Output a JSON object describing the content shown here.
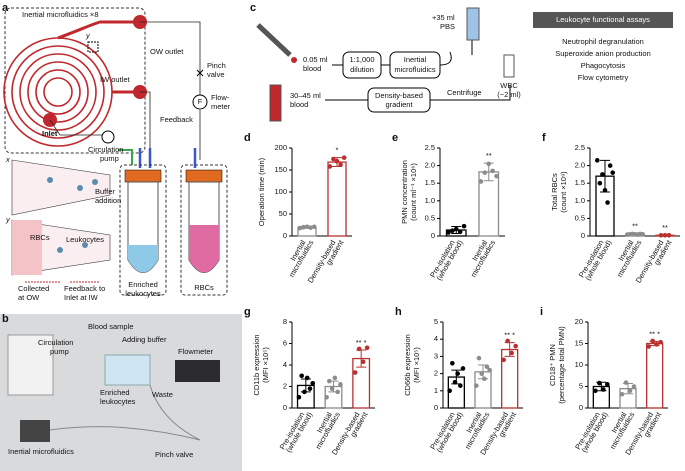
{
  "diagram_a": {
    "panel": "a",
    "chip": "Inertial microfluidics ×8",
    "y_mark": "y",
    "ow_outlet": "OW outlet",
    "iw_outlet": "IW outlet",
    "inlet": "Inlet",
    "pump": [
      "Circulation",
      "pump"
    ],
    "pinch": [
      "Pinch",
      "valve"
    ],
    "flow_symbol": "F",
    "flowmeter": [
      "Flow-",
      "meter"
    ],
    "feedback": "Feedback",
    "buffer": [
      "Buffer",
      "addition"
    ],
    "axis_x": "x",
    "axis_y": "y",
    "rbcs": "RBCs",
    "leukocytes": "Leukocytes",
    "collected": [
      "Collected",
      "at OW"
    ],
    "feedback_to": [
      "Feedback to",
      "Inlet at IW"
    ],
    "enriched": [
      "Enriched",
      "leukocytes"
    ],
    "rbcs_tube": "RBCs"
  },
  "diagram_b": {
    "panel": "b",
    "blood": "Blood sample",
    "buffer": "Adding buffer",
    "pump": [
      "Circulation",
      "pump"
    ],
    "flowmeter": "Flowmeter",
    "enriched": [
      "Enriched",
      "leukocytes"
    ],
    "waste": "Waste",
    "chip": "Inertial microfluidics",
    "pinch": "Pinch valve"
  },
  "diagram_c": {
    "panel": "c",
    "small_blood": [
      "0.05 ml",
      "blood"
    ],
    "dilution": [
      "1:1,000",
      "dilution"
    ],
    "inertial": [
      "Inertial",
      "microfluidics"
    ],
    "pbs": [
      "+35 ml",
      "PBS"
    ],
    "large_blood": [
      "30–45 ml",
      "blood"
    ],
    "gradient": [
      "Density-based",
      "gradient"
    ],
    "centrifuge": "Centrifuge",
    "wbc": [
      "WBC",
      "(~2 ml)"
    ],
    "assays_title": "Leukocyte functional assays",
    "assays": [
      "Neutrophil degranulation",
      "Superoxide anion production",
      "Phagocytosis",
      "Flow cytometry"
    ]
  },
  "chart_data": [
    {
      "type": "bar",
      "panel": "d",
      "ylabel": [
        "Operation time (min)"
      ],
      "categories": [
        [
          "Inertial",
          "microfluidics"
        ],
        [
          "Density-based",
          "gradient"
        ]
      ],
      "values": [
        20,
        168
      ],
      "errors": [
        2,
        10
      ],
      "colors": [
        "#8c8c8c",
        "#b8312f"
      ],
      "points": [
        [
          18,
          20,
          21,
          19,
          21
        ],
        [
          158,
          175,
          170,
          162,
          178
        ]
      ],
      "ylim": [
        0,
        200
      ],
      "yticks": [
        0,
        50,
        100,
        150,
        200
      ],
      "annotations": [
        {
          "index": 1,
          "text": "*"
        }
      ]
    },
    {
      "type": "bar",
      "panel": "e",
      "ylabel": [
        "PMN concentration",
        "(count ml⁻¹ ×10⁶)"
      ],
      "categories": [
        [
          "Pre-isolation",
          "(whole blood)"
        ],
        [
          "Inertial",
          "microfluidics"
        ]
      ],
      "values": [
        0.17,
        1.82
      ],
      "errors": [
        0.1,
        0.25
      ],
      "colors": [
        "#000000",
        "#8c8c8c"
      ],
      "points": [
        [
          0.1,
          0.15,
          0.2,
          0.12,
          0.28
        ],
        [
          1.55,
          1.8,
          2.05,
          1.85,
          1.7
        ]
      ],
      "ylim": [
        0,
        2.5
      ],
      "yticks": [
        0,
        0.5,
        {
          "value": 1,
          "label": "1.0"
        },
        1.5,
        {
          "value": 2,
          "label": "2.0"
        },
        2.5
      ],
      "annotations": [
        {
          "index": 1,
          "text": "**"
        }
      ]
    },
    {
      "type": "bar",
      "panel": "f",
      "ylabel": [
        "Total RBCs",
        "(count ×10⁹)"
      ],
      "categories": [
        [
          "Pre-isolation",
          "(whole blood)"
        ],
        [
          "Inertial",
          "microfluidics"
        ],
        [
          "Density-based",
          "gradient"
        ]
      ],
      "values": [
        1.7,
        0.05,
        0.02
      ],
      "errors": [
        0.45,
        0.02,
        0.01
      ],
      "colors": [
        "#000000",
        "#8c8c8c",
        "#b8312f"
      ],
      "points": [
        [
          2.15,
          1.5,
          1.75,
          1.3,
          0.95,
          2.0,
          1.8
        ],
        [
          0.04,
          0.05,
          0.06,
          0.05,
          0.04,
          0.06,
          0.05
        ],
        [
          0.02,
          0.02,
          0.02
        ]
      ],
      "ylim": [
        0,
        2.5
      ],
      "yticks": [
        0,
        0.5,
        {
          "value": 1,
          "label": "1.0"
        },
        1.5,
        {
          "value": 2,
          "label": "2.0"
        },
        2.5
      ],
      "annotations": [
        {
          "index": 1,
          "text": "**"
        },
        {
          "index": 2,
          "text": "**"
        }
      ]
    },
    {
      "type": "bar",
      "panel": "g",
      "ylabel": [
        "CD11b expression",
        "(MFI ×10⁵)"
      ],
      "categories": [
        [
          "Pre-isolation",
          "(whole blood)"
        ],
        [
          "Inertial",
          "microfluidics"
        ],
        [
          "Density-based",
          "gradient"
        ]
      ],
      "values": [
        2.1,
        2.0,
        4.6
      ],
      "errors": [
        0.6,
        0.5,
        0.8
      ],
      "colors": [
        "#000000",
        "#8c8c8c",
        "#b8312f"
      ],
      "points": [
        [
          1.0,
          3.0,
          1.5,
          2.8,
          1.8,
          2.3
        ],
        [
          1.0,
          2.5,
          1.8,
          2.8,
          1.5,
          2.2
        ],
        [
          3.3,
          5.5,
          4.3,
          5.6
        ]
      ],
      "ylim": [
        0,
        8
      ],
      "yticks": [
        0,
        2,
        4,
        6,
        8
      ],
      "annotations": [
        {
          "index": 2,
          "text": "** *"
        }
      ]
    },
    {
      "type": "bar",
      "panel": "h",
      "ylabel": [
        "CD66b expression",
        "(MFI ×10⁵)"
      ],
      "categories": [
        [
          "Pre-isolation",
          "(whole blood)"
        ],
        [
          "Inertial",
          "microfluidics"
        ],
        [
          "Density-based",
          "gradient"
        ]
      ],
      "values": [
        1.8,
        2.1,
        3.4
      ],
      "errors": [
        0.4,
        0.4,
        0.4
      ],
      "colors": [
        "#000000",
        "#8c8c8c",
        "#b8312f"
      ],
      "points": [
        [
          1.0,
          2.6,
          1.5,
          2.0,
          1.3,
          2.3
        ],
        [
          1.3,
          2.9,
          2.0,
          1.7,
          2.4,
          2.2
        ],
        [
          2.8,
          3.9,
          3.2,
          3.6
        ]
      ],
      "ylim": [
        0,
        5
      ],
      "yticks": [
        0,
        1,
        2,
        3,
        4,
        5
      ],
      "annotations": [
        {
          "index": 2,
          "text": "** *"
        }
      ]
    },
    {
      "type": "bar",
      "panel": "i",
      "ylabel": [
        "CD18⁺ PMN",
        "(percentage total PMN)"
      ],
      "categories": [
        [
          "Pre-isolation",
          "(whole blood)"
        ],
        [
          "Inertial",
          "microfluidics"
        ],
        [
          "Density-based",
          "gradient"
        ]
      ],
      "values": [
        5,
        4.5,
        15
      ],
      "errors": [
        1,
        1.2,
        0.5
      ],
      "colors": [
        "#000000",
        "#8c8c8c",
        "#b8312f"
      ],
      "points": [
        [
          4,
          5.8,
          4.3,
          5.5
        ],
        [
          3.2,
          5.9,
          4.0,
          5.0
        ],
        [
          14.3,
          15.6,
          14.8,
          15.3
        ]
      ],
      "ylim": [
        0,
        20
      ],
      "yticks": [
        0,
        5,
        10,
        15,
        20
      ],
      "annotations": [
        {
          "index": 2,
          "text": "** *"
        }
      ]
    }
  ]
}
